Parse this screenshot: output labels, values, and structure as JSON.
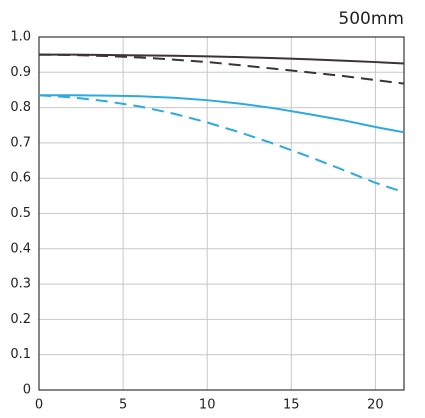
{
  "chart_data": {
    "type": "line",
    "title": "500mm",
    "x": [
      0,
      2,
      4,
      6,
      8,
      10,
      12,
      14,
      16,
      18,
      20,
      21.7
    ],
    "series": [
      {
        "color": "#3c3434",
        "dashed": false,
        "values": [
          0.95,
          0.95,
          0.949,
          0.948,
          0.947,
          0.945,
          0.943,
          0.94,
          0.937,
          0.933,
          0.929,
          0.925
        ]
      },
      {
        "color": "#3c3434",
        "dashed": true,
        "values": [
          0.95,
          0.949,
          0.946,
          0.942,
          0.936,
          0.929,
          0.92,
          0.91,
          0.9,
          0.89,
          0.878,
          0.868
        ]
      },
      {
        "color": "#29abe2",
        "dashed": false,
        "values": [
          0.835,
          0.835,
          0.834,
          0.832,
          0.828,
          0.821,
          0.811,
          0.798,
          0.782,
          0.765,
          0.745,
          0.73
        ]
      },
      {
        "color": "#29abe2",
        "dashed": true,
        "values": [
          0.835,
          0.829,
          0.818,
          0.803,
          0.783,
          0.758,
          0.729,
          0.697,
          0.662,
          0.625,
          0.587,
          0.56
        ]
      }
    ],
    "xlim": [
      0,
      21.7
    ],
    "xticks": [
      0,
      5,
      10,
      15,
      20
    ],
    "ylim": [
      0,
      1
    ],
    "yticks": [
      0,
      0.1,
      0.2,
      0.3,
      0.4,
      0.5,
      0.6,
      0.7,
      0.8,
      0.9,
      {
        "value": 1,
        "label": "1.0"
      }
    ],
    "grid": true
  }
}
